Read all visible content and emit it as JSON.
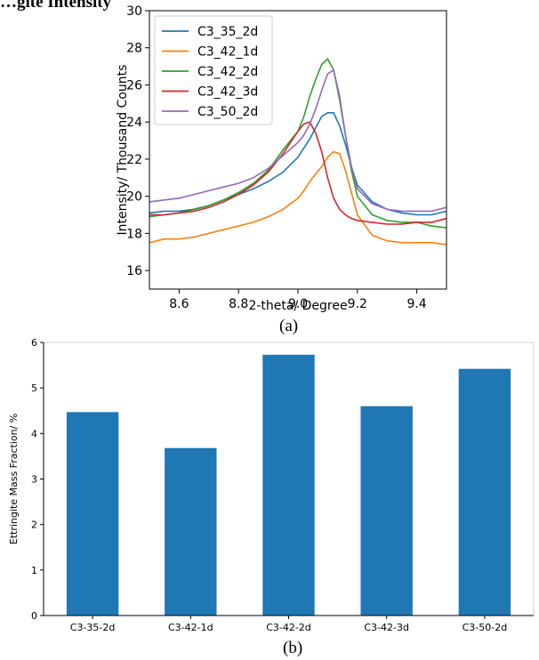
{
  "figure": {
    "caption_a": "(a)",
    "caption_b": "(b)",
    "top_title_fragment": "…gite Intensity"
  },
  "chart_data": [
    {
      "type": "line",
      "title": "",
      "xlabel": "2-theta/ Degree",
      "ylabel": "Intensity/ Thousand Counts",
      "xlim": [
        8.5,
        9.5
      ],
      "ylim": [
        15,
        30
      ],
      "xticks": [
        8.6,
        8.8,
        9.0,
        9.2,
        9.4
      ],
      "xtick_labels": [
        "8.6",
        "8.8",
        "9.0",
        "9.2",
        "9.4"
      ],
      "yticks": [
        16,
        18,
        20,
        22,
        24,
        26,
        28,
        30
      ],
      "ytick_labels": [
        "16",
        "18",
        "20",
        "22",
        "24",
        "26",
        "28",
        "30"
      ],
      "legend_position": "top-left",
      "grid": false,
      "x": [
        8.5,
        8.55,
        8.6,
        8.65,
        8.7,
        8.75,
        8.8,
        8.85,
        8.9,
        8.95,
        9.0,
        9.02,
        9.04,
        9.06,
        9.08,
        9.1,
        9.12,
        9.14,
        9.16,
        9.18,
        9.2,
        9.25,
        9.3,
        9.35,
        9.4,
        9.45,
        9.5
      ],
      "series": [
        {
          "name": "C3_35_2d",
          "color": "#1f77b4",
          "values": [
            19.1,
            19.2,
            19.2,
            19.3,
            19.5,
            19.8,
            20.1,
            20.4,
            20.8,
            21.3,
            22.1,
            22.6,
            23.1,
            23.7,
            24.3,
            24.5,
            24.5,
            23.8,
            22.8,
            21.6,
            20.6,
            19.7,
            19.3,
            19.1,
            19.0,
            19.0,
            19.2
          ]
        },
        {
          "name": "C3_42_1d",
          "color": "#ff7f0e",
          "values": [
            17.5,
            17.7,
            17.7,
            17.8,
            18.0,
            18.2,
            18.4,
            18.6,
            18.9,
            19.3,
            19.9,
            20.3,
            20.8,
            21.2,
            21.6,
            22.1,
            22.4,
            22.3,
            21.4,
            20.2,
            19.0,
            17.9,
            17.6,
            17.5,
            17.5,
            17.5,
            17.4
          ]
        },
        {
          "name": "C3_42_2d",
          "color": "#2ca02c",
          "values": [
            18.9,
            19.0,
            19.1,
            19.3,
            19.5,
            19.8,
            20.2,
            20.7,
            21.4,
            22.5,
            23.5,
            24.3,
            25.4,
            26.3,
            27.1,
            27.4,
            26.8,
            25.2,
            23.3,
            21.4,
            20.0,
            19.0,
            18.7,
            18.6,
            18.6,
            18.4,
            18.3
          ]
        },
        {
          "name": "C3_42_3d",
          "color": "#d62728",
          "values": [
            19.0,
            19.0,
            19.1,
            19.2,
            19.4,
            19.7,
            20.1,
            20.6,
            21.3,
            22.3,
            23.5,
            23.9,
            24.0,
            23.4,
            22.4,
            21.0,
            19.9,
            19.3,
            19.0,
            18.8,
            18.7,
            18.6,
            18.5,
            18.5,
            18.6,
            18.6,
            18.8
          ]
        },
        {
          "name": "C3_50_2d",
          "color": "#9467bd",
          "values": [
            19.7,
            19.8,
            19.9,
            20.1,
            20.3,
            20.5,
            20.7,
            21.0,
            21.5,
            22.2,
            22.9,
            23.3,
            23.9,
            24.7,
            25.7,
            26.6,
            26.8,
            25.4,
            23.3,
            21.6,
            20.4,
            19.6,
            19.3,
            19.2,
            19.2,
            19.2,
            19.4
          ]
        }
      ]
    },
    {
      "type": "bar",
      "title": "",
      "xlabel": "",
      "ylabel": "Ettringite Mass Fraction/ %",
      "ylim": [
        0,
        6
      ],
      "yticks": [
        0,
        1,
        2,
        3,
        4,
        5,
        6
      ],
      "ytick_labels": [
        "0",
        "1",
        "2",
        "3",
        "4",
        "5",
        "6"
      ],
      "categories": [
        "C3-35-2d",
        "C3-42-1d",
        "C3-42-2d",
        "C3-42-3d",
        "C3-50-2d"
      ],
      "values": [
        4.47,
        3.68,
        5.73,
        4.6,
        5.42
      ],
      "bar_color": "#1f77b4",
      "grid": false
    }
  ]
}
